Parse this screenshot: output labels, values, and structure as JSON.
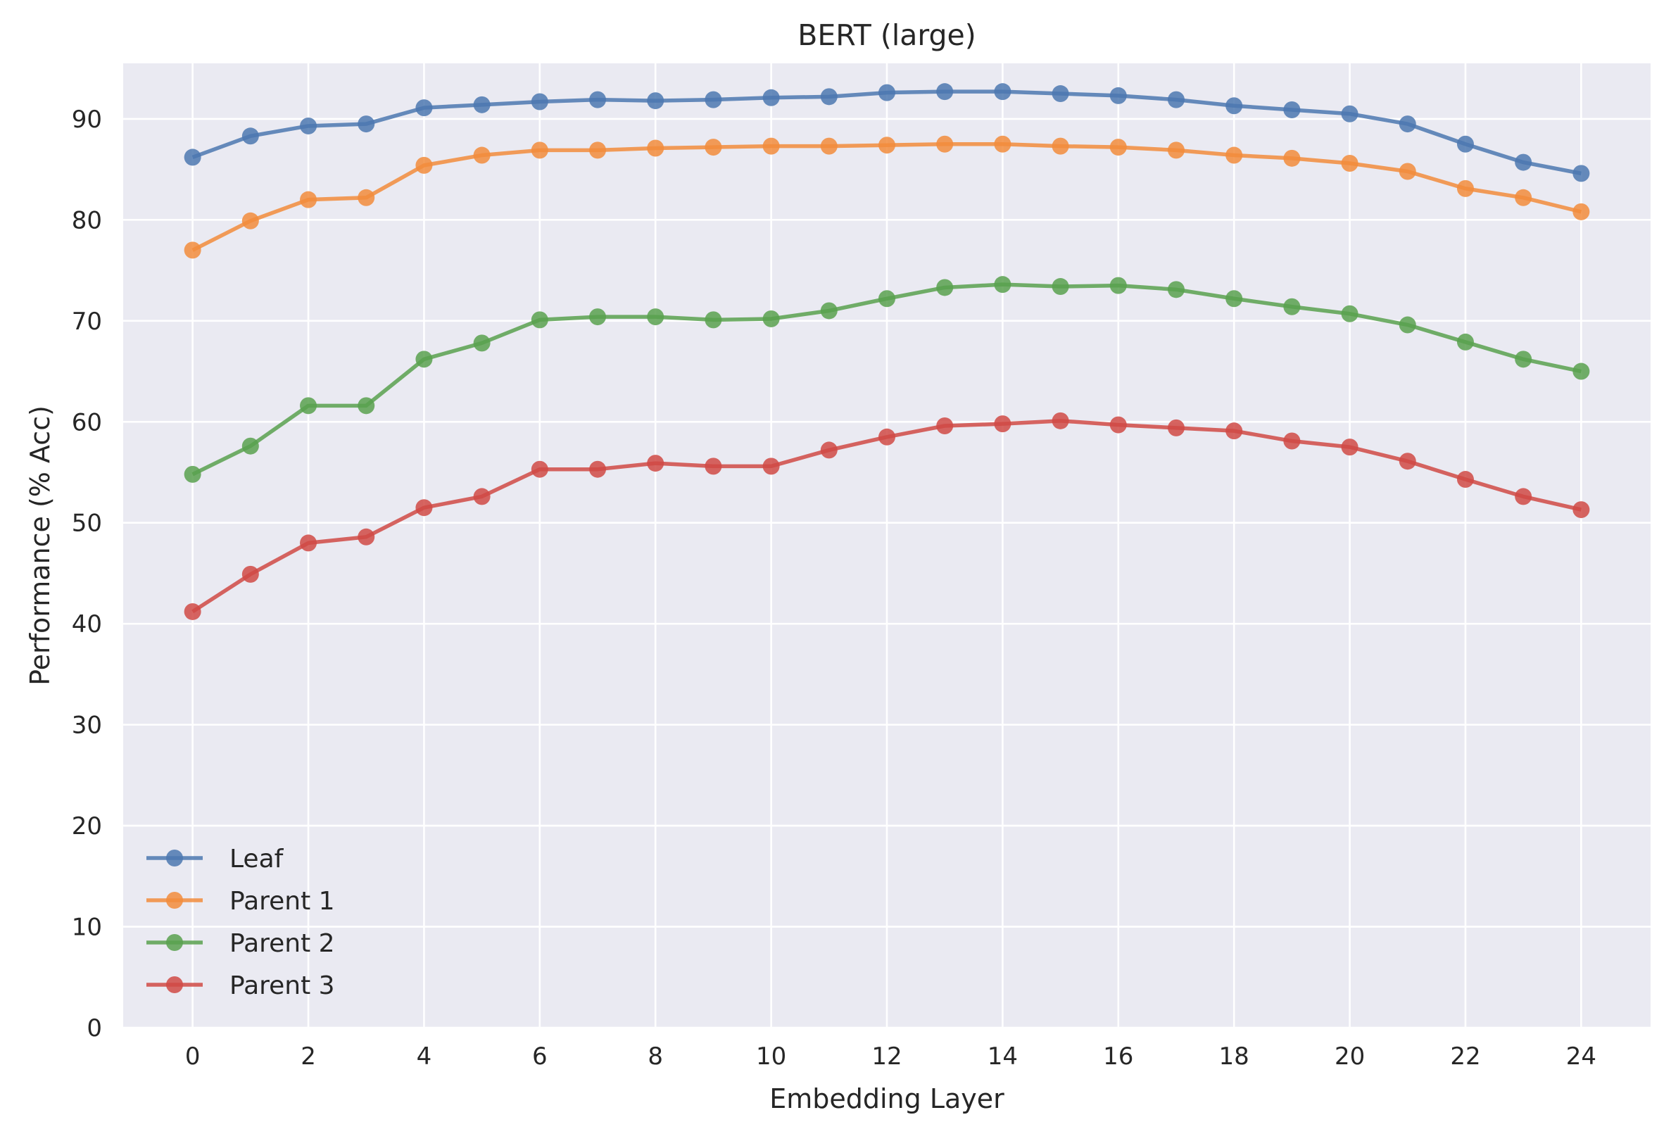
{
  "chart_data": {
    "type": "line",
    "title": "BERT (large)",
    "xlabel": "Embedding Layer",
    "ylabel": "Performance (% Acc)",
    "x": [
      0,
      1,
      2,
      3,
      4,
      5,
      6,
      7,
      8,
      9,
      10,
      11,
      12,
      13,
      14,
      15,
      16,
      17,
      18,
      19,
      20,
      21,
      22,
      23,
      24
    ],
    "xticks": [
      0,
      2,
      4,
      6,
      8,
      10,
      12,
      14,
      16,
      18,
      20,
      22,
      24
    ],
    "yticks": [
      0,
      10,
      20,
      30,
      40,
      50,
      60,
      70,
      80,
      90
    ],
    "xlim": [
      -1.2,
      25.2
    ],
    "ylim": [
      0,
      95.5
    ],
    "grid": true,
    "legend_position": "lower-left",
    "series": [
      {
        "name": "Leaf",
        "color": "#4c78b0",
        "values": [
          86.2,
          88.3,
          89.3,
          89.5,
          91.1,
          91.4,
          91.7,
          91.9,
          91.8,
          91.9,
          92.1,
          92.2,
          92.6,
          92.7,
          92.7,
          92.5,
          92.3,
          91.9,
          91.3,
          90.9,
          90.5,
          89.5,
          87.5,
          85.7,
          84.6
        ]
      },
      {
        "name": "Parent 1",
        "color": "#f28c3c",
        "values": [
          77.0,
          79.9,
          82.0,
          82.2,
          85.4,
          86.4,
          86.9,
          86.9,
          87.1,
          87.2,
          87.3,
          87.3,
          87.4,
          87.5,
          87.5,
          87.3,
          87.2,
          86.9,
          86.4,
          86.1,
          85.6,
          84.8,
          83.1,
          82.2,
          80.8
        ]
      },
      {
        "name": "Parent 2",
        "color": "#59a14f",
        "values": [
          54.8,
          57.6,
          61.6,
          61.6,
          66.2,
          67.8,
          70.1,
          70.4,
          70.4,
          70.1,
          70.2,
          71.0,
          72.2,
          73.3,
          73.6,
          73.4,
          73.5,
          73.1,
          72.2,
          71.4,
          70.7,
          69.6,
          67.9,
          66.2,
          65.0
        ]
      },
      {
        "name": "Parent 3",
        "color": "#d04a45",
        "values": [
          41.2,
          44.9,
          48.0,
          48.6,
          51.5,
          52.6,
          55.3,
          55.3,
          55.9,
          55.6,
          55.6,
          57.2,
          58.5,
          59.6,
          59.8,
          60.1,
          59.7,
          59.4,
          59.1,
          58.1,
          57.5,
          56.1,
          54.3,
          52.6,
          51.3
        ]
      }
    ]
  }
}
